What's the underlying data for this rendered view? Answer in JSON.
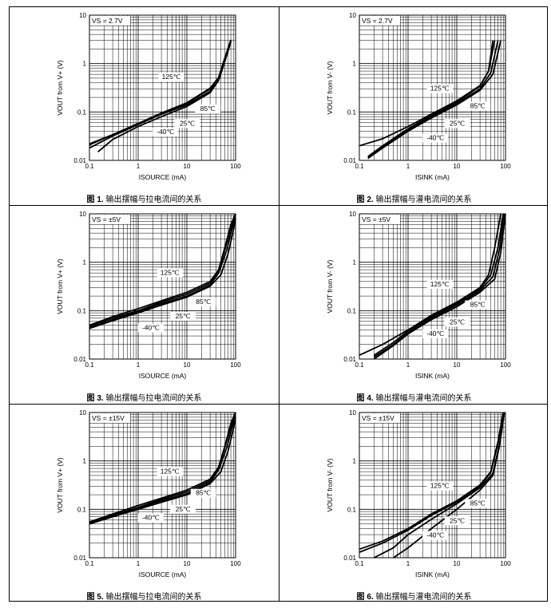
{
  "charts": [
    {
      "caption_num": "图 1.",
      "caption_text": "输出摆幅与拉电流间的关系",
      "vs_label": "VS = 2.7V",
      "ylabel": "VOUT from V+ (V)",
      "xlabel": "ISOURCE (mA)",
      "y_ticks": [
        "0.01",
        "0.1",
        "1",
        "10"
      ],
      "x_ticks": [
        "0.1",
        "1",
        "10",
        "100"
      ],
      "legend": [
        "125℃",
        "85℃",
        "25℃",
        "-40℃"
      ],
      "type": "line"
    },
    {
      "caption_num": "图 2.",
      "caption_text": "输出摆幅与灌电流间的关系",
      "vs_label": "VS = 2.7V",
      "ylabel": "VOUT from V- (V)",
      "xlabel": "ISINK (mA)",
      "y_ticks": [
        "0.01",
        "0.1",
        "1",
        "10"
      ],
      "x_ticks": [
        "0.1",
        "1",
        "10",
        "100"
      ],
      "legend": [
        "125℃",
        "85℃",
        "25℃",
        "-40℃"
      ],
      "type": "line"
    },
    {
      "caption_num": "图 3.",
      "caption_text": "输出摆幅与拉电流间的关系",
      "vs_label": "VS = ±5V",
      "ylabel": "VOUT from V+ (V)",
      "xlabel": "ISOURCE (mA)",
      "y_ticks": [
        "0.01",
        "0.1",
        "1",
        "10"
      ],
      "x_ticks": [
        "0.1",
        "1",
        "10",
        "100"
      ],
      "legend": [
        "125℃",
        "85℃",
        "25℃",
        "-40℃"
      ],
      "type": "line"
    },
    {
      "caption_num": "图 4.",
      "caption_text": "输出摆幅与灌电流间的关系",
      "vs_label": "VS = ±5V",
      "ylabel": "VOUT from V- (V)",
      "xlabel": "ISINK (mA)",
      "y_ticks": [
        "0.01",
        "0.1",
        "1",
        "10"
      ],
      "x_ticks": [
        "0.1",
        "1",
        "10",
        "100"
      ],
      "legend": [
        "125℃",
        "85℃",
        "25℃",
        "-40℃"
      ],
      "type": "line"
    },
    {
      "caption_num": "图 5.",
      "caption_text": "输出摆幅与拉电流间的关系",
      "vs_label": "VS = ±15V",
      "ylabel": "VOUT from V+ (V)",
      "xlabel": "ISOURCE (mA)",
      "y_ticks": [
        "0.01",
        "0.1",
        "1",
        "10"
      ],
      "x_ticks": [
        "0.1",
        "1",
        "10",
        "100"
      ],
      "legend": [
        "125℃",
        "85℃",
        "25℃",
        "-40℃"
      ],
      "type": "line"
    },
    {
      "caption_num": "图 6.",
      "caption_text": "输出摆幅与灌电流间的关系",
      "vs_label": "VS = ±15V",
      "ylabel": "VOUT from V- (V)",
      "xlabel": "ISINK (mA)",
      "y_ticks": [
        "0.01",
        "0.1",
        "1",
        "10"
      ],
      "x_ticks": [
        "0.1",
        "1",
        "10",
        "100"
      ],
      "legend": [
        "125℃",
        "85℃",
        "25℃",
        "-40℃"
      ],
      "type": "line"
    }
  ],
  "chart_data": [
    {
      "type": "line",
      "xscale": "log",
      "yscale": "log",
      "xlim": [
        0.1,
        100
      ],
      "ylim": [
        0.01,
        10
      ],
      "series": [
        {
          "name": "125℃",
          "x": [
            0.1,
            0.3,
            1,
            3,
            10,
            30,
            45,
            60,
            80
          ],
          "y": [
            0.018,
            0.032,
            0.055,
            0.09,
            0.15,
            0.3,
            0.5,
            1.2,
            3.0
          ]
        },
        {
          "name": "85℃",
          "x": [
            0.1,
            0.3,
            1,
            3,
            10,
            30,
            45,
            60,
            80
          ],
          "y": [
            0.021,
            0.034,
            0.058,
            0.095,
            0.155,
            0.31,
            0.52,
            1.3,
            3.1
          ]
        },
        {
          "name": "25℃",
          "x": [
            0.1,
            0.3,
            1,
            3,
            10,
            30,
            45,
            60,
            80
          ],
          "y": [
            0.022,
            0.034,
            0.056,
            0.09,
            0.14,
            0.27,
            0.48,
            1.2,
            2.9
          ]
        },
        {
          "name": "-40℃",
          "x": [
            0.15,
            0.3,
            1,
            3,
            10,
            30,
            45,
            60,
            80
          ],
          "y": [
            0.015,
            0.027,
            0.05,
            0.08,
            0.13,
            0.25,
            0.45,
            1.1,
            2.8
          ]
        }
      ]
    },
    {
      "type": "line",
      "xscale": "log",
      "yscale": "log",
      "xlim": [
        0.1,
        100
      ],
      "ylim": [
        0.01,
        10
      ],
      "series": [
        {
          "name": "125℃",
          "x": [
            0.1,
            0.3,
            1,
            3,
            10,
            30,
            45,
            55
          ],
          "y": [
            0.02,
            0.028,
            0.05,
            0.09,
            0.17,
            0.35,
            0.7,
            3.0
          ]
        },
        {
          "name": "85℃",
          "x": [
            0.15,
            0.3,
            1,
            3,
            10,
            30,
            45,
            60
          ],
          "y": [
            0.012,
            0.02,
            0.045,
            0.085,
            0.16,
            0.34,
            0.7,
            3.0
          ]
        },
        {
          "name": "25℃",
          "x": [
            0.15,
            0.3,
            1,
            3,
            10,
            30,
            50,
            70
          ],
          "y": [
            0.011,
            0.019,
            0.042,
            0.08,
            0.15,
            0.3,
            0.65,
            3.0
          ]
        },
        {
          "name": "-40℃",
          "x": [
            0.15,
            0.3,
            1,
            3,
            10,
            30,
            55,
            80
          ],
          "y": [
            0.011,
            0.018,
            0.04,
            0.075,
            0.14,
            0.28,
            0.6,
            3.0
          ]
        }
      ]
    },
    {
      "type": "line",
      "xscale": "log",
      "yscale": "log",
      "xlim": [
        0.1,
        100
      ],
      "ylim": [
        0.01,
        10
      ],
      "series": [
        {
          "name": "125℃",
          "x": [
            0.1,
            0.3,
            1,
            3,
            10,
            30,
            45,
            60,
            80,
            100
          ],
          "y": [
            0.05,
            0.075,
            0.11,
            0.16,
            0.24,
            0.4,
            0.7,
            2,
            6,
            10
          ]
        },
        {
          "name": "85℃",
          "x": [
            0.1,
            0.3,
            1,
            3,
            10,
            30,
            45,
            60,
            80,
            100
          ],
          "y": [
            0.048,
            0.07,
            0.1,
            0.15,
            0.22,
            0.37,
            0.65,
            1.8,
            5,
            10
          ]
        },
        {
          "name": "25℃",
          "x": [
            0.1,
            0.3,
            1,
            3,
            10,
            30,
            45,
            65,
            85,
            100
          ],
          "y": [
            0.045,
            0.065,
            0.095,
            0.14,
            0.2,
            0.34,
            0.6,
            1.7,
            5,
            10
          ]
        },
        {
          "name": "-40℃",
          "x": [
            0.1,
            0.3,
            1,
            3,
            10,
            30,
            50,
            70,
            90,
            100
          ],
          "y": [
            0.043,
            0.062,
            0.09,
            0.13,
            0.19,
            0.32,
            0.55,
            1.5,
            4.5,
            8
          ]
        }
      ]
    },
    {
      "type": "line",
      "xscale": "log",
      "yscale": "log",
      "xlim": [
        0.1,
        100
      ],
      "ylim": [
        0.01,
        10
      ],
      "series": [
        {
          "name": "125℃",
          "x": [
            0.1,
            0.3,
            1,
            3,
            10,
            30,
            45,
            60,
            80
          ],
          "y": [
            0.012,
            0.02,
            0.04,
            0.08,
            0.15,
            0.3,
            0.55,
            2,
            10
          ]
        },
        {
          "name": "85℃",
          "x": [
            0.2,
            0.5,
            1,
            3,
            10,
            30,
            50,
            70,
            90
          ],
          "y": [
            0.012,
            0.022,
            0.038,
            0.075,
            0.14,
            0.28,
            0.55,
            2,
            10
          ]
        },
        {
          "name": "25℃",
          "x": [
            0.2,
            0.5,
            1,
            3,
            10,
            30,
            55,
            75,
            95
          ],
          "y": [
            0.011,
            0.02,
            0.035,
            0.07,
            0.13,
            0.26,
            0.5,
            1.8,
            10
          ]
        },
        {
          "name": "-40℃",
          "x": [
            0.2,
            0.5,
            1,
            3,
            10,
            30,
            60,
            80,
            100
          ],
          "y": [
            0.01,
            0.019,
            0.033,
            0.065,
            0.12,
            0.24,
            0.45,
            1.6,
            10
          ]
        }
      ]
    },
    {
      "type": "line",
      "xscale": "log",
      "yscale": "log",
      "xlim": [
        0.1,
        100
      ],
      "ylim": [
        0.01,
        10
      ],
      "series": [
        {
          "name": "125℃",
          "x": [
            0.1,
            0.3,
            1,
            3,
            10,
            30,
            45,
            60,
            80,
            100
          ],
          "y": [
            0.055,
            0.08,
            0.12,
            0.17,
            0.25,
            0.42,
            0.75,
            2,
            6,
            10
          ]
        },
        {
          "name": "85℃",
          "x": [
            0.1,
            0.3,
            1,
            3,
            10,
            30,
            45,
            60,
            80,
            100
          ],
          "y": [
            0.053,
            0.076,
            0.11,
            0.16,
            0.23,
            0.39,
            0.7,
            1.9,
            5,
            10
          ]
        },
        {
          "name": "25℃",
          "x": [
            0.1,
            0.3,
            1,
            3,
            10,
            30,
            45,
            65,
            85,
            100
          ],
          "y": [
            0.05,
            0.072,
            0.105,
            0.15,
            0.21,
            0.36,
            0.65,
            1.8,
            5,
            10
          ]
        },
        {
          "name": "-40℃",
          "x": [
            0.1,
            0.3,
            1,
            3,
            10,
            30,
            50,
            70,
            90,
            100
          ],
          "y": [
            0.05,
            0.07,
            0.1,
            0.14,
            0.2,
            0.34,
            0.6,
            1.6,
            4.5,
            8
          ]
        }
      ]
    },
    {
      "type": "line",
      "xscale": "log",
      "yscale": "log",
      "xlim": [
        0.1,
        100
      ],
      "ylim": [
        0.01,
        10
      ],
      "series": [
        {
          "name": "125℃",
          "x": [
            0.1,
            0.3,
            1,
            3,
            10,
            30,
            50,
            70,
            90
          ],
          "y": [
            0.015,
            0.022,
            0.04,
            0.08,
            0.15,
            0.32,
            0.6,
            2.5,
            10
          ]
        },
        {
          "name": "85℃",
          "x": [
            0.1,
            0.3,
            1,
            3,
            10,
            30,
            50,
            70,
            90
          ],
          "y": [
            0.013,
            0.02,
            0.037,
            0.075,
            0.14,
            0.3,
            0.58,
            2.3,
            10
          ]
        },
        {
          "name": "25℃",
          "x": [
            0.2,
            0.5,
            1,
            3,
            10,
            30,
            55,
            75,
            95
          ],
          "y": [
            0.01,
            0.016,
            0.03,
            0.062,
            0.13,
            0.28,
            0.55,
            2.2,
            10
          ]
        },
        {
          "name": "-40℃",
          "x": [
            0.5,
            1,
            2,
            3,
            10,
            30,
            55,
            75,
            95
          ],
          "y": [
            0.01,
            0.016,
            0.028,
            0.04,
            0.1,
            0.25,
            0.5,
            2,
            10
          ]
        }
      ]
    }
  ]
}
